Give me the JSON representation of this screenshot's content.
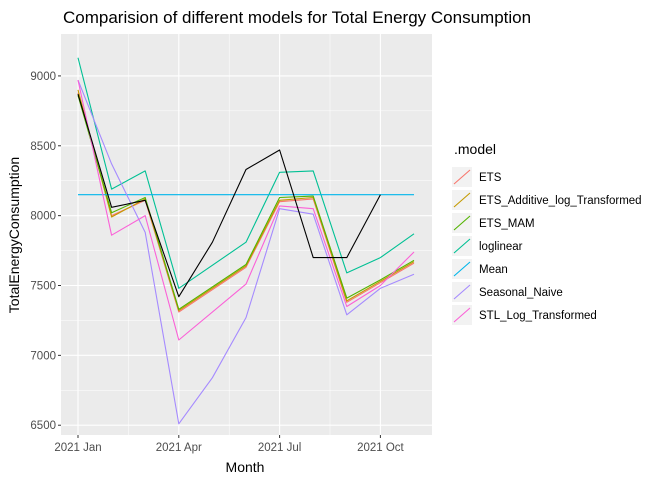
{
  "chart_data": {
    "type": "line",
    "title": "Comparision of different models for Total Energy Consumption",
    "xlabel": "Month",
    "ylabel": "TotalEnergyConsumption",
    "x": [
      "2021 Jan",
      "2021 Feb",
      "2021 Mar",
      "2021 Apr",
      "2021 May",
      "2021 Jun",
      "2021 Jul",
      "2021 Aug",
      "2021 Sep",
      "2021 Oct",
      "2021 Nov"
    ],
    "x_ticks": [
      "2021 Jan",
      "2021 Apr",
      "2021 Jul",
      "2021 Oct"
    ],
    "x_tick_index": [
      0,
      3,
      6,
      9
    ],
    "y_ticks": [
      6500,
      7000,
      7500,
      8000,
      8500,
      9000
    ],
    "ylim": [
      6430,
      9300
    ],
    "grid": true,
    "legend_title": ".model",
    "legend_position": "right",
    "actual": {
      "color": "#000000",
      "values": [
        8870,
        8060,
        8110,
        7420,
        7810,
        8330,
        8470,
        7700,
        7700,
        8150
      ]
    },
    "series": [
      {
        "name": "ETS",
        "color": "#F8766D",
        "values": [
          8880,
          8000,
          8110,
          7310,
          null,
          7630,
          8100,
          8120,
          7380,
          7520,
          7660
        ]
      },
      {
        "name": "ETS_Additive_log_Transformed",
        "color": "#C49A00",
        "values": [
          8900,
          7990,
          8120,
          7320,
          null,
          7640,
          8110,
          8130,
          7390,
          7530,
          7670
        ]
      },
      {
        "name": "ETS_MAM",
        "color": "#53B400",
        "values": [
          8860,
          8020,
          8130,
          7330,
          null,
          7650,
          8130,
          8140,
          7410,
          7540,
          7680
        ]
      },
      {
        "name": "loglinear",
        "color": "#00C094",
        "values": [
          9130,
          8190,
          8320,
          7480,
          null,
          7810,
          8310,
          8320,
          7590,
          7700,
          7870
        ]
      },
      {
        "name": "Mean",
        "color": "#00B6EB",
        "values": [
          8150,
          8150,
          8150,
          8150,
          8150,
          8150,
          8150,
          8150,
          8150,
          8150,
          8150
        ]
      },
      {
        "name": "Seasonal_Naive",
        "color": "#A58AFF",
        "values": [
          8970,
          8370,
          7880,
          6510,
          6840,
          7270,
          8050,
          8010,
          7290,
          7480,
          7580
        ]
      },
      {
        "name": "STL_Log_Transformed",
        "color": "#FB61D7",
        "values": [
          8970,
          7860,
          8000,
          7110,
          null,
          7510,
          8070,
          8050,
          7350,
          7500,
          7740
        ]
      }
    ]
  }
}
